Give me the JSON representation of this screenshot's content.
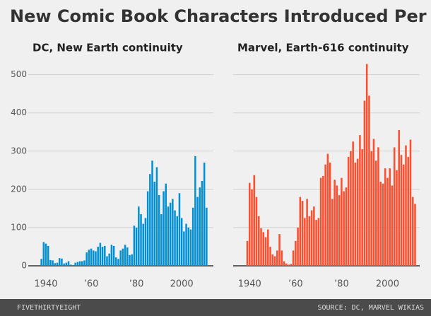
{
  "title": "New Comic Book Characters Introduced Per Year",
  "footer": {
    "brand": "FIVETHIRTYEIGHT",
    "source": "SOURCE: DC, MARVEL WIKIAS"
  },
  "chart_data": [
    {
      "type": "bar",
      "title": "DC, New Earth continuity",
      "color": "#008fd5",
      "x": [
        1938,
        1939,
        1940,
        1941,
        1942,
        1943,
        1944,
        1945,
        1946,
        1947,
        1948,
        1949,
        1950,
        1951,
        1952,
        1953,
        1954,
        1955,
        1956,
        1957,
        1958,
        1959,
        1960,
        1961,
        1962,
        1963,
        1964,
        1965,
        1966,
        1967,
        1968,
        1969,
        1970,
        1971,
        1972,
        1973,
        1974,
        1975,
        1976,
        1977,
        1978,
        1979,
        1980,
        1981,
        1982,
        1983,
        1984,
        1985,
        1986,
        1987,
        1988,
        1989,
        1990,
        1991,
        1992,
        1993,
        1994,
        1995,
        1996,
        1997,
        1998,
        1999,
        2000,
        2001,
        2002,
        2003,
        2004,
        2005,
        2006,
        2007,
        2008,
        2009,
        2010,
        2011
      ],
      "values": [
        18,
        62,
        58,
        52,
        15,
        14,
        7,
        8,
        20,
        19,
        6,
        8,
        12,
        3,
        2,
        8,
        10,
        12,
        12,
        14,
        35,
        42,
        45,
        40,
        38,
        50,
        60,
        50,
        52,
        25,
        32,
        55,
        52,
        22,
        18,
        40,
        45,
        55,
        48,
        28,
        30,
        105,
        100,
        155,
        135,
        110,
        125,
        195,
        240,
        275,
        220,
        258,
        185,
        135,
        195,
        215,
        155,
        165,
        175,
        145,
        130,
        190,
        125,
        90,
        110,
        100,
        95,
        152,
        287,
        180,
        205,
        222,
        270,
        152
      ],
      "xlim": [
        1935,
        2014
      ],
      "xticks": [
        {
          "value": 1940,
          "label": "1940"
        },
        {
          "value": 1960,
          "label": "’60"
        },
        {
          "value": 1980,
          "label": "’80"
        },
        2000
      ],
      "ylim": [
        0,
        540
      ],
      "yticks": [
        0,
        100,
        200,
        300,
        400,
        500
      ],
      "grid": true
    },
    {
      "type": "bar",
      "title": "Marvel, Earth-616 continuity",
      "color": "#fc4f30",
      "x": [
        1939,
        1940,
        1941,
        1942,
        1943,
        1944,
        1945,
        1946,
        1947,
        1948,
        1949,
        1950,
        1951,
        1952,
        1953,
        1954,
        1955,
        1956,
        1957,
        1958,
        1959,
        1960,
        1961,
        1962,
        1963,
        1964,
        1965,
        1966,
        1967,
        1968,
        1969,
        1970,
        1971,
        1972,
        1973,
        1974,
        1975,
        1976,
        1977,
        1978,
        1979,
        1980,
        1981,
        1982,
        1983,
        1984,
        1985,
        1986,
        1987,
        1988,
        1989,
        1990,
        1991,
        1992,
        1993,
        1994,
        1995,
        1996,
        1997,
        1998,
        1999,
        2000,
        2001,
        2002,
        2003,
        2004,
        2005,
        2006,
        2007,
        2008,
        2009,
        2010,
        2011,
        2012
      ],
      "values": [
        65,
        217,
        200,
        237,
        180,
        130,
        98,
        88,
        75,
        95,
        50,
        30,
        25,
        40,
        83,
        40,
        12,
        6,
        3,
        5,
        40,
        65,
        100,
        180,
        170,
        125,
        175,
        130,
        145,
        155,
        120,
        125,
        230,
        235,
        265,
        293,
        270,
        175,
        225,
        210,
        185,
        230,
        195,
        205,
        285,
        300,
        325,
        270,
        280,
        342,
        305,
        432,
        528,
        445,
        300,
        332,
        275,
        310,
        220,
        215,
        255,
        230,
        255,
        210,
        310,
        250,
        355,
        290,
        265,
        315,
        285,
        330,
        180,
        162
      ],
      "xlim": [
        1935,
        2014
      ],
      "xticks": [
        {
          "value": 1940,
          "label": "1940"
        },
        {
          "value": 1960,
          "label": "’60"
        },
        {
          "value": 1980,
          "label": "’80"
        },
        2000
      ],
      "ylim": [
        0,
        540
      ],
      "grid": true
    }
  ]
}
